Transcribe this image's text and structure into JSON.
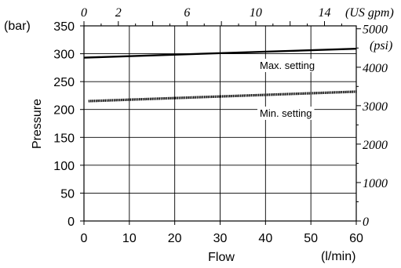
{
  "chart_data": {
    "type": "line",
    "xlabel": "Flow",
    "xunit": "(l/min)",
    "ylabel": "Pressure",
    "yunit": "(bar)",
    "x2unit": "(US gpm)",
    "y2unit": "(psi)",
    "xlim": [
      0,
      60
    ],
    "ylim": [
      0,
      350
    ],
    "x_ticks": [
      "0",
      "10",
      "20",
      "30",
      "40",
      "50",
      "60"
    ],
    "y_ticks": [
      "0",
      "50",
      "100",
      "150",
      "200",
      "250",
      "300",
      "350"
    ],
    "x2_ticks": [
      "0",
      "2",
      "6",
      "10",
      "14"
    ],
    "y2_ticks": [
      "0",
      "1000",
      "2000",
      "3000",
      "4000",
      "5000"
    ],
    "grid": true,
    "series": [
      {
        "name": "Max. setting",
        "x": [
          0,
          60
        ],
        "y": [
          293,
          309
        ]
      },
      {
        "name": "Min. setting",
        "x": [
          1,
          60
        ],
        "y": [
          215,
          232
        ]
      }
    ]
  }
}
